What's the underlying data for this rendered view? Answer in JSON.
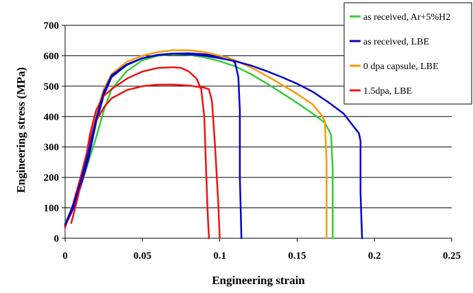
{
  "chart_data": {
    "type": "line",
    "title": "",
    "xlabel": "Engineering strain",
    "ylabel": "Engineering stress (MPa)",
    "xlim": [
      0,
      0.25
    ],
    "ylim": [
      0,
      700
    ],
    "x_ticks": [
      0,
      0.05,
      0.1,
      0.15,
      0.2,
      0.25
    ],
    "x_tick_labels": [
      "0",
      "0.05",
      "0.1",
      "0.15",
      "0.2",
      "0.25"
    ],
    "y_ticks": [
      0,
      100,
      200,
      300,
      400,
      500,
      600,
      700
    ],
    "y_tick_labels": [
      "0",
      "100",
      "200",
      "300",
      "400",
      "500",
      "600",
      "700"
    ],
    "grid": "horizontal",
    "legend_position": "top-right",
    "series": [
      {
        "name": "as received, Ar+5%H2",
        "color": "#33cc33",
        "points": [
          [
            0.0,
            50
          ],
          [
            0.005,
            100
          ],
          [
            0.01,
            170
          ],
          [
            0.015,
            250
          ],
          [
            0.02,
            330
          ],
          [
            0.025,
            420
          ],
          [
            0.03,
            490
          ],
          [
            0.04,
            550
          ],
          [
            0.05,
            585
          ],
          [
            0.06,
            600
          ],
          [
            0.07,
            605
          ],
          [
            0.08,
            603
          ],
          [
            0.09,
            595
          ],
          [
            0.1,
            582
          ],
          [
            0.11,
            565
          ],
          [
            0.12,
            540
          ],
          [
            0.13,
            510
          ],
          [
            0.14,
            478
          ],
          [
            0.15,
            445
          ],
          [
            0.16,
            410
          ],
          [
            0.168,
            380
          ],
          [
            0.172,
            340
          ],
          [
            0.173,
            230
          ],
          [
            0.173,
            0
          ]
        ]
      },
      {
        "name": "as received, LBE",
        "color": "#0000cc",
        "points": [
          [
            0.0,
            40
          ],
          [
            0.005,
            95
          ],
          [
            0.01,
            170
          ],
          [
            0.015,
            260
          ],
          [
            0.02,
            380
          ],
          [
            0.025,
            470
          ],
          [
            0.03,
            530
          ],
          [
            0.04,
            570
          ],
          [
            0.05,
            592
          ],
          [
            0.06,
            602
          ],
          [
            0.07,
            607
          ],
          [
            0.08,
            608
          ],
          [
            0.09,
            605
          ],
          [
            0.1,
            598
          ],
          [
            0.105,
            594
          ],
          [
            0.108,
            588
          ],
          [
            0.11,
            575
          ],
          [
            0.112,
            530
          ],
          [
            0.113,
            420
          ],
          [
            0.113,
            200
          ],
          [
            0.114,
            0
          ]
        ]
      },
      {
        "name": "0 dpa capsule, LBE",
        "color": "#ff9900",
        "points": [
          [
            0.0,
            45
          ],
          [
            0.005,
            110
          ],
          [
            0.01,
            200
          ],
          [
            0.015,
            300
          ],
          [
            0.02,
            410
          ],
          [
            0.025,
            490
          ],
          [
            0.03,
            540
          ],
          [
            0.04,
            580
          ],
          [
            0.05,
            600
          ],
          [
            0.06,
            612
          ],
          [
            0.07,
            618
          ],
          [
            0.08,
            618
          ],
          [
            0.09,
            612
          ],
          [
            0.1,
            600
          ],
          [
            0.11,
            585
          ],
          [
            0.12,
            562
          ],
          [
            0.13,
            535
          ],
          [
            0.14,
            505
          ],
          [
            0.15,
            475
          ],
          [
            0.16,
            440
          ],
          [
            0.165,
            410
          ],
          [
            0.168,
            385
          ],
          [
            0.169,
            250
          ],
          [
            0.169,
            0
          ]
        ]
      },
      {
        "name": "1.5dpa, LBE",
        "color": "#ee1111",
        "points": [
          [
            0.0,
            35
          ],
          [
            0.005,
            110
          ],
          [
            0.01,
            200
          ],
          [
            0.015,
            300
          ],
          [
            0.02,
            385
          ],
          [
            0.025,
            430
          ],
          [
            0.03,
            460
          ],
          [
            0.04,
            487
          ],
          [
            0.05,
            500
          ],
          [
            0.06,
            505
          ],
          [
            0.07,
            505
          ],
          [
            0.08,
            502
          ],
          [
            0.09,
            495
          ],
          [
            0.093,
            490
          ],
          [
            0.095,
            450
          ],
          [
            0.097,
            300
          ],
          [
            0.099,
            120
          ],
          [
            0.1,
            0
          ]
        ]
      },
      {
        "name": "",
        "color": "#ee1111",
        "points": [
          [
            0.004,
            50
          ],
          [
            0.008,
            130
          ],
          [
            0.012,
            220
          ],
          [
            0.016,
            340
          ],
          [
            0.02,
            420
          ],
          [
            0.025,
            468
          ],
          [
            0.03,
            490
          ],
          [
            0.04,
            525
          ],
          [
            0.05,
            548
          ],
          [
            0.06,
            560
          ],
          [
            0.07,
            562
          ],
          [
            0.075,
            560
          ],
          [
            0.08,
            548
          ],
          [
            0.085,
            525
          ],
          [
            0.088,
            490
          ],
          [
            0.09,
            400
          ],
          [
            0.091,
            250
          ],
          [
            0.092,
            100
          ],
          [
            0.093,
            0
          ]
        ]
      },
      {
        "name": "",
        "color": "#0000cc",
        "points": [
          [
            0.0,
            45
          ],
          [
            0.005,
            105
          ],
          [
            0.01,
            185
          ],
          [
            0.015,
            280
          ],
          [
            0.02,
            390
          ],
          [
            0.025,
            480
          ],
          [
            0.03,
            535
          ],
          [
            0.04,
            572
          ],
          [
            0.05,
            592
          ],
          [
            0.06,
            603
          ],
          [
            0.07,
            607
          ],
          [
            0.08,
            605
          ],
          [
            0.09,
            600
          ],
          [
            0.1,
            592
          ],
          [
            0.11,
            582
          ],
          [
            0.12,
            568
          ],
          [
            0.13,
            550
          ],
          [
            0.14,
            530
          ],
          [
            0.15,
            508
          ],
          [
            0.16,
            482
          ],
          [
            0.17,
            448
          ],
          [
            0.18,
            410
          ],
          [
            0.19,
            345
          ],
          [
            0.191,
            320
          ],
          [
            0.191,
            150
          ],
          [
            0.192,
            0
          ]
        ]
      }
    ]
  }
}
